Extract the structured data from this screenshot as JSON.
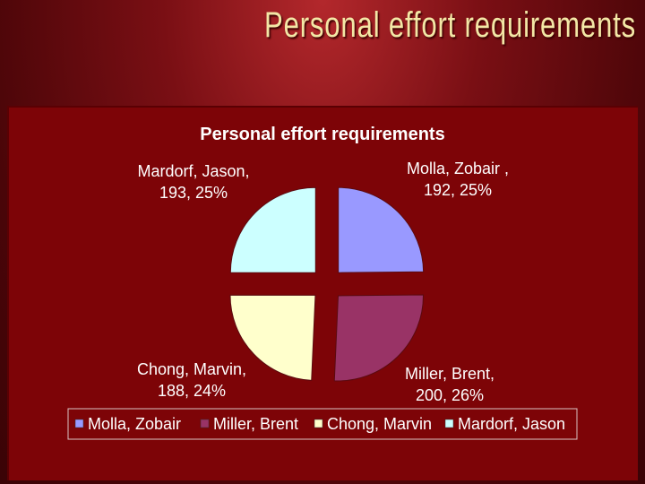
{
  "slide": {
    "title": "Personal effort requirements"
  },
  "chart_data": {
    "type": "pie",
    "title": "Personal effort requirements",
    "legend_position": "bottom",
    "exploded": true,
    "slices": [
      {
        "name": "Molla, Zobair",
        "value": 192,
        "percent": "25%",
        "color": "#9999ff",
        "label_lines": [
          "Molla, Zobair ,",
          "192, 25%"
        ]
      },
      {
        "name": "Miller, Brent",
        "value": 200,
        "percent": "26%",
        "color": "#993366",
        "label_lines": [
          "Miller, Brent,",
          "200, 26%"
        ]
      },
      {
        "name": "Chong, Marvin",
        "value": 188,
        "percent": "24%",
        "color": "#ffffcc",
        "label_lines": [
          "Chong, Marvin,",
          "188, 24%"
        ]
      },
      {
        "name": "Mardorf, Jason",
        "value": 193,
        "percent": "25%",
        "color": "#ccffff",
        "label_lines": [
          "Mardorf, Jason,",
          "193, 25%"
        ]
      }
    ]
  }
}
